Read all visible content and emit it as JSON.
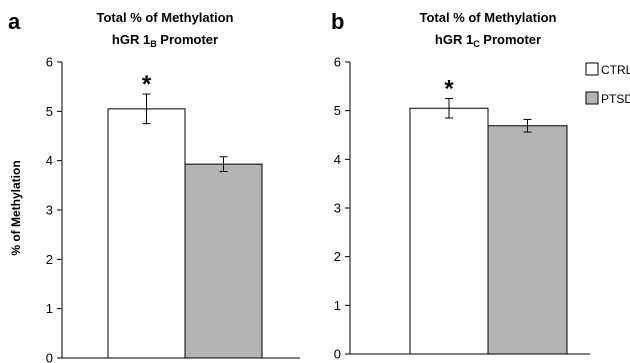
{
  "chart_data": [
    {
      "type": "bar",
      "panel_label": "a",
      "title_line1": "Total % of Methylation",
      "title_line2_main": "hGR 1",
      "title_line2_sub": "B",
      "title_line2_tail": " Promoter",
      "ylabel": "% of Methylation",
      "xlabel": "",
      "ylim": [
        0,
        6
      ],
      "yticks": [
        "0",
        "1",
        "2",
        "3",
        "4",
        "5",
        "6"
      ],
      "categories": [
        "CTRL",
        "PTSD"
      ],
      "values": [
        5.05,
        3.93
      ],
      "errors": [
        0.3,
        0.15
      ],
      "significance": [
        "*",
        ""
      ],
      "grid": false
    },
    {
      "type": "bar",
      "panel_label": "b",
      "title_line1": "Total % of Methylation",
      "title_line2_main": "hGR 1",
      "title_line2_sub": "C",
      "title_line2_tail": " Promoter",
      "ylabel": "",
      "xlabel": "",
      "ylim": [
        0,
        6
      ],
      "yticks": [
        "0",
        "1",
        "2",
        "3",
        "4",
        "5",
        "6"
      ],
      "categories": [
        "CTRL",
        "PTSD"
      ],
      "values": [
        5.05,
        4.69
      ],
      "errors": [
        0.2,
        0.13
      ],
      "significance": [
        "*",
        ""
      ],
      "grid": false
    }
  ],
  "legend": {
    "placement": "top-right",
    "items": [
      {
        "label": "CTRL",
        "color": "#ffffff"
      },
      {
        "label": "PTSD",
        "color": "#b3b3b3"
      }
    ]
  },
  "colors": {
    "ctrl_fill": "#ffffff",
    "ptsd_fill": "#b3b3b3",
    "stroke": "#000000"
  }
}
